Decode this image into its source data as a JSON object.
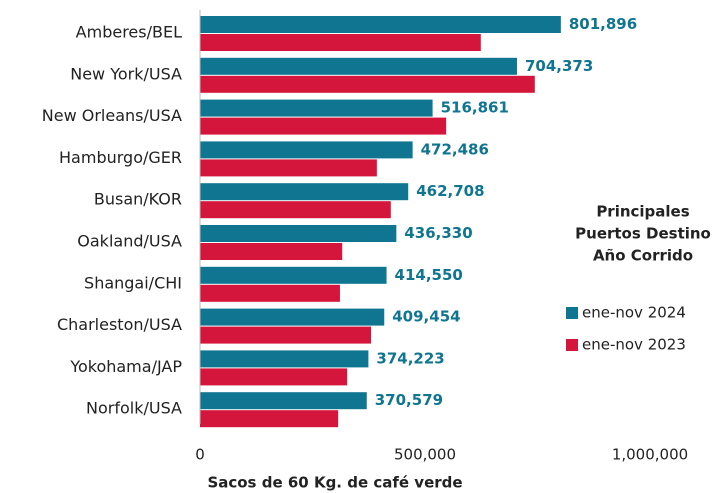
{
  "chart_data": {
    "type": "bar",
    "orientation": "horizontal",
    "categories": [
      "Amberes/BEL",
      "New York/USA",
      "New Orleans/USA",
      "Hamburgo/GER",
      "Busan/KOR",
      "Oakland/USA",
      "Shangai/CHI",
      "Charleston/USA",
      "Yokohama/JAP",
      "Norfolk/USA"
    ],
    "series": [
      {
        "name": "ene-nov 2024",
        "color": "#0f7590",
        "values": [
          801896,
          704373,
          516861,
          472486,
          462708,
          436330,
          414550,
          409454,
          374223,
          370579
        ],
        "value_labels": [
          "801,896",
          "704,373",
          "516,861",
          "472,486",
          "462,708",
          "436,330",
          "414,550",
          "409,454",
          "374,223",
          "370,579"
        ]
      },
      {
        "name": "ene-nov 2023",
        "color": "#d4163c",
        "values": [
          624000,
          744000,
          547000,
          393000,
          424000,
          316000,
          311000,
          380000,
          327000,
          307000
        ]
      }
    ],
    "xlim": [
      0,
      1000000
    ],
    "xticks": [
      0,
      {
        "value": 500000,
        "label": "500,000"
      },
      {
        "value": 1000000,
        "label": "1,000,000"
      }
    ],
    "x_label": "Sacos de 60 Kg. de café verde",
    "legend_title": [
      "Principales",
      "Puertos Destino",
      "Año Corrido"
    ],
    "legend": "right"
  }
}
